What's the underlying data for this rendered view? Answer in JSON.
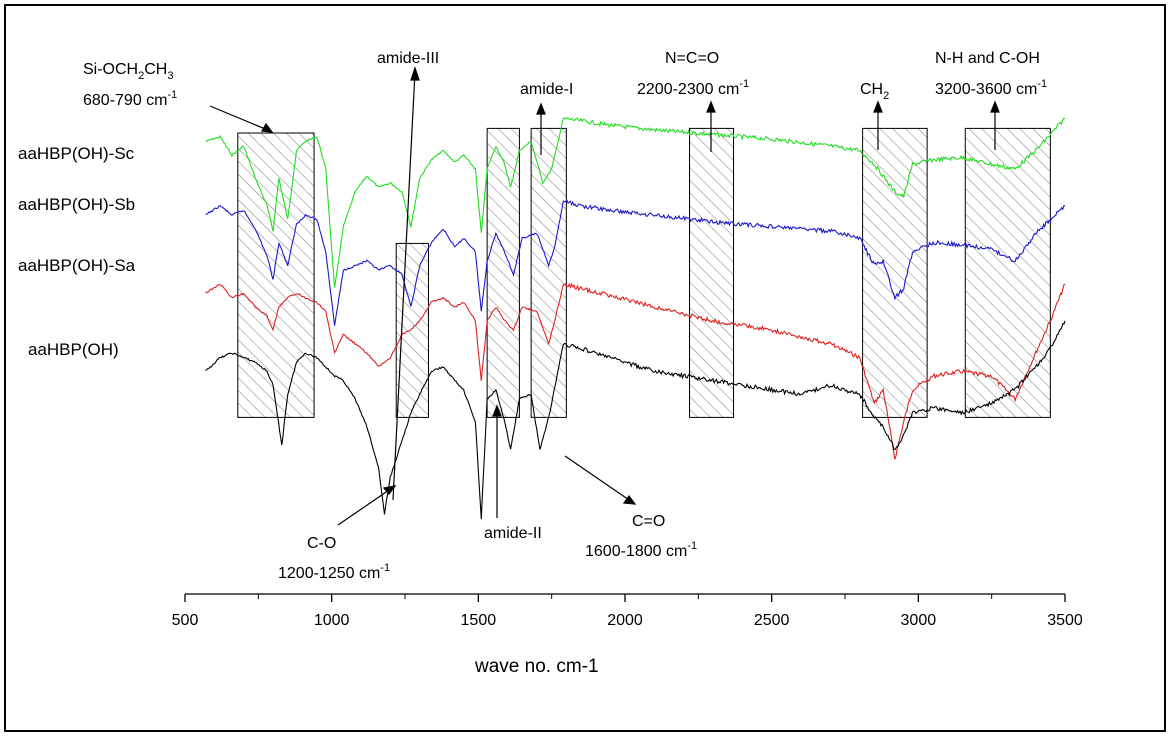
{
  "chart_data": {
    "type": "line",
    "title": "",
    "xlabel": "wave no. cm-1",
    "ylabel": "",
    "xlim": [
      500,
      3500
    ],
    "xticks": [
      "500",
      "1000",
      "1500",
      "2000",
      "2500",
      "3000",
      "3500"
    ],
    "grid": false,
    "series": [
      {
        "name": "aaHBP(OH)-Sc",
        "color": "#22dd22",
        "points": [
          [
            570,
            0.18
          ],
          [
            620,
            0.16
          ],
          [
            660,
            0.24
          ],
          [
            700,
            0.2
          ],
          [
            740,
            0.34
          ],
          [
            780,
            0.46
          ],
          [
            800,
            0.57
          ],
          [
            820,
            0.34
          ],
          [
            850,
            0.52
          ],
          [
            880,
            0.22
          ],
          [
            910,
            0.18
          ],
          [
            950,
            0.16
          ],
          [
            980,
            0.3
          ],
          [
            1010,
            0.82
          ],
          [
            1040,
            0.55
          ],
          [
            1080,
            0.4
          ],
          [
            1120,
            0.33
          ],
          [
            1160,
            0.38
          ],
          [
            1200,
            0.36
          ],
          [
            1240,
            0.4
          ],
          [
            1270,
            0.55
          ],
          [
            1300,
            0.34
          ],
          [
            1340,
            0.26
          ],
          [
            1380,
            0.22
          ],
          [
            1420,
            0.27
          ],
          [
            1450,
            0.24
          ],
          [
            1490,
            0.3
          ],
          [
            1510,
            0.58
          ],
          [
            1530,
            0.3
          ],
          [
            1560,
            0.2
          ],
          [
            1590,
            0.28
          ],
          [
            1610,
            0.38
          ],
          [
            1640,
            0.22
          ],
          [
            1680,
            0.18
          ],
          [
            1720,
            0.36
          ],
          [
            1750,
            0.3
          ],
          [
            1790,
            0.08
          ],
          [
            1850,
            0.09
          ],
          [
            1950,
            0.11
          ],
          [
            2100,
            0.13
          ],
          [
            2300,
            0.15
          ],
          [
            2500,
            0.17
          ],
          [
            2700,
            0.2
          ],
          [
            2800,
            0.22
          ],
          [
            2850,
            0.28
          ],
          [
            2880,
            0.33
          ],
          [
            2920,
            0.4
          ],
          [
            2950,
            0.42
          ],
          [
            2980,
            0.28
          ],
          [
            3050,
            0.26
          ],
          [
            3150,
            0.25
          ],
          [
            3250,
            0.28
          ],
          [
            3330,
            0.3
          ],
          [
            3400,
            0.22
          ],
          [
            3450,
            0.15
          ],
          [
            3500,
            0.08
          ]
        ]
      },
      {
        "name": "aaHBP(OH)-Sb",
        "color": "#1a1acc",
        "points": [
          [
            570,
            0.5
          ],
          [
            620,
            0.46
          ],
          [
            660,
            0.5
          ],
          [
            700,
            0.48
          ],
          [
            740,
            0.56
          ],
          [
            780,
            0.68
          ],
          [
            800,
            0.78
          ],
          [
            820,
            0.62
          ],
          [
            850,
            0.72
          ],
          [
            880,
            0.54
          ],
          [
            910,
            0.5
          ],
          [
            950,
            0.52
          ],
          [
            980,
            0.66
          ],
          [
            1010,
            0.98
          ],
          [
            1040,
            0.74
          ],
          [
            1080,
            0.72
          ],
          [
            1120,
            0.7
          ],
          [
            1160,
            0.74
          ],
          [
            1200,
            0.72
          ],
          [
            1240,
            0.76
          ],
          [
            1270,
            0.9
          ],
          [
            1300,
            0.72
          ],
          [
            1340,
            0.62
          ],
          [
            1380,
            0.56
          ],
          [
            1420,
            0.64
          ],
          [
            1450,
            0.6
          ],
          [
            1490,
            0.66
          ],
          [
            1510,
            0.92
          ],
          [
            1530,
            0.7
          ],
          [
            1560,
            0.58
          ],
          [
            1590,
            0.66
          ],
          [
            1620,
            0.76
          ],
          [
            1650,
            0.6
          ],
          [
            1700,
            0.58
          ],
          [
            1740,
            0.72
          ],
          [
            1760,
            0.64
          ],
          [
            1790,
            0.44
          ],
          [
            1850,
            0.46
          ],
          [
            1950,
            0.48
          ],
          [
            2100,
            0.5
          ],
          [
            2300,
            0.53
          ],
          [
            2500,
            0.55
          ],
          [
            2700,
            0.57
          ],
          [
            2800,
            0.6
          ],
          [
            2850,
            0.72
          ],
          [
            2880,
            0.7
          ],
          [
            2920,
            0.86
          ],
          [
            2950,
            0.82
          ],
          [
            2980,
            0.66
          ],
          [
            3050,
            0.62
          ],
          [
            3150,
            0.63
          ],
          [
            3250,
            0.65
          ],
          [
            3330,
            0.7
          ],
          [
            3400,
            0.58
          ],
          [
            3450,
            0.52
          ],
          [
            3500,
            0.46
          ]
        ]
      },
      {
        "name": "aaHBP(OH)-Sa",
        "color": "#dd2222",
        "points": [
          [
            570,
            0.84
          ],
          [
            620,
            0.8
          ],
          [
            660,
            0.86
          ],
          [
            700,
            0.84
          ],
          [
            740,
            0.9
          ],
          [
            780,
            0.94
          ],
          [
            800,
            1.0
          ],
          [
            820,
            0.9
          ],
          [
            850,
            0.86
          ],
          [
            880,
            0.84
          ],
          [
            910,
            0.86
          ],
          [
            950,
            0.88
          ],
          [
            980,
            0.92
          ],
          [
            1010,
            1.1
          ],
          [
            1040,
            1.02
          ],
          [
            1080,
            1.06
          ],
          [
            1120,
            1.1
          ],
          [
            1160,
            1.16
          ],
          [
            1200,
            1.12
          ],
          [
            1240,
            1.02
          ],
          [
            1270,
            1.0
          ],
          [
            1300,
            0.96
          ],
          [
            1340,
            0.88
          ],
          [
            1380,
            0.86
          ],
          [
            1420,
            0.9
          ],
          [
            1450,
            0.88
          ],
          [
            1490,
            0.96
          ],
          [
            1510,
            1.22
          ],
          [
            1530,
            0.96
          ],
          [
            1560,
            0.9
          ],
          [
            1590,
            0.96
          ],
          [
            1620,
            1.0
          ],
          [
            1650,
            0.9
          ],
          [
            1700,
            0.92
          ],
          [
            1740,
            1.06
          ],
          [
            1760,
            0.96
          ],
          [
            1790,
            0.8
          ],
          [
            1850,
            0.82
          ],
          [
            1950,
            0.85
          ],
          [
            2100,
            0.9
          ],
          [
            2300,
            0.96
          ],
          [
            2500,
            1.0
          ],
          [
            2700,
            1.06
          ],
          [
            2800,
            1.12
          ],
          [
            2850,
            1.32
          ],
          [
            2880,
            1.26
          ],
          [
            2920,
            1.56
          ],
          [
            2950,
            1.4
          ],
          [
            2980,
            1.26
          ],
          [
            3050,
            1.2
          ],
          [
            3150,
            1.18
          ],
          [
            3250,
            1.2
          ],
          [
            3330,
            1.3
          ],
          [
            3400,
            1.1
          ],
          [
            3450,
            0.96
          ],
          [
            3500,
            0.8
          ]
        ]
      },
      {
        "name": "aaHBP(OH)",
        "color": "#000000",
        "points": [
          [
            570,
            1.18
          ],
          [
            620,
            1.12
          ],
          [
            660,
            1.1
          ],
          [
            700,
            1.12
          ],
          [
            740,
            1.14
          ],
          [
            780,
            1.18
          ],
          [
            800,
            1.24
          ],
          [
            830,
            1.5
          ],
          [
            850,
            1.28
          ],
          [
            880,
            1.14
          ],
          [
            910,
            1.1
          ],
          [
            950,
            1.12
          ],
          [
            980,
            1.16
          ],
          [
            1010,
            1.2
          ],
          [
            1040,
            1.22
          ],
          [
            1080,
            1.3
          ],
          [
            1120,
            1.42
          ],
          [
            1160,
            1.6
          ],
          [
            1180,
            1.8
          ],
          [
            1200,
            1.64
          ],
          [
            1240,
            1.48
          ],
          [
            1270,
            1.36
          ],
          [
            1300,
            1.28
          ],
          [
            1340,
            1.18
          ],
          [
            1380,
            1.16
          ],
          [
            1420,
            1.22
          ],
          [
            1450,
            1.26
          ],
          [
            1490,
            1.4
          ],
          [
            1510,
            1.82
          ],
          [
            1530,
            1.3
          ],
          [
            1560,
            1.26
          ],
          [
            1590,
            1.4
          ],
          [
            1610,
            1.52
          ],
          [
            1640,
            1.3
          ],
          [
            1680,
            1.28
          ],
          [
            1710,
            1.52
          ],
          [
            1740,
            1.38
          ],
          [
            1790,
            1.06
          ],
          [
            1850,
            1.08
          ],
          [
            1950,
            1.12
          ],
          [
            2100,
            1.18
          ],
          [
            2300,
            1.22
          ],
          [
            2500,
            1.26
          ],
          [
            2600,
            1.28
          ],
          [
            2700,
            1.24
          ],
          [
            2800,
            1.28
          ],
          [
            2850,
            1.38
          ],
          [
            2880,
            1.42
          ],
          [
            2920,
            1.52
          ],
          [
            2950,
            1.46
          ],
          [
            2980,
            1.36
          ],
          [
            3050,
            1.34
          ],
          [
            3150,
            1.36
          ],
          [
            3250,
            1.32
          ],
          [
            3330,
            1.26
          ],
          [
            3400,
            1.16
          ],
          [
            3450,
            1.08
          ],
          [
            3500,
            0.96
          ]
        ]
      }
    ],
    "regions": [
      {
        "x0": 680,
        "x1": 940,
        "y0": 0.1,
        "y1": 1.38
      },
      {
        "x0": 1220,
        "x1": 1330,
        "y0": 0.58,
        "y1": 1.38
      },
      {
        "x0": 1530,
        "x1": 1640,
        "y0": 0.08,
        "y1": 1.38
      },
      {
        "x0": 1680,
        "x1": 1800,
        "y0": 0.08,
        "y1": 1.38
      },
      {
        "x0": 2220,
        "x1": 2370,
        "y0": 0.08,
        "y1": 1.38
      },
      {
        "x0": 2810,
        "x1": 3030,
        "y0": 0.08,
        "y1": 1.38
      },
      {
        "x0": 3160,
        "x1": 3450,
        "y0": 0.08,
        "y1": 1.38
      }
    ],
    "annotations": [
      {
        "name": "si-och2ch3",
        "parts": [
          "Si-OCH",
          "2",
          "CH",
          "3"
        ],
        "range": "680-790 cm",
        "sup": "-1"
      },
      {
        "name": "amide-iii",
        "text": "amide-III"
      },
      {
        "name": "amide-i",
        "text": "amide-I"
      },
      {
        "name": "n-c-o",
        "text": "N=C=O",
        "range": "2200-2300 cm",
        "sup": "-1"
      },
      {
        "name": "ch2",
        "parts": [
          "CH",
          "2"
        ]
      },
      {
        "name": "nh-coh",
        "text": "N-H and C-OH",
        "range": "3200-3600 cm",
        "sup": "-1"
      },
      {
        "name": "c-o",
        "text": "C-O",
        "range": "1200-1250 cm",
        "sup": "-1"
      },
      {
        "name": "amide-ii",
        "text": "amide-II"
      },
      {
        "name": "c-eq-o",
        "text": "C=O",
        "range": "1600-1800 cm",
        "sup": "-1"
      }
    ]
  }
}
